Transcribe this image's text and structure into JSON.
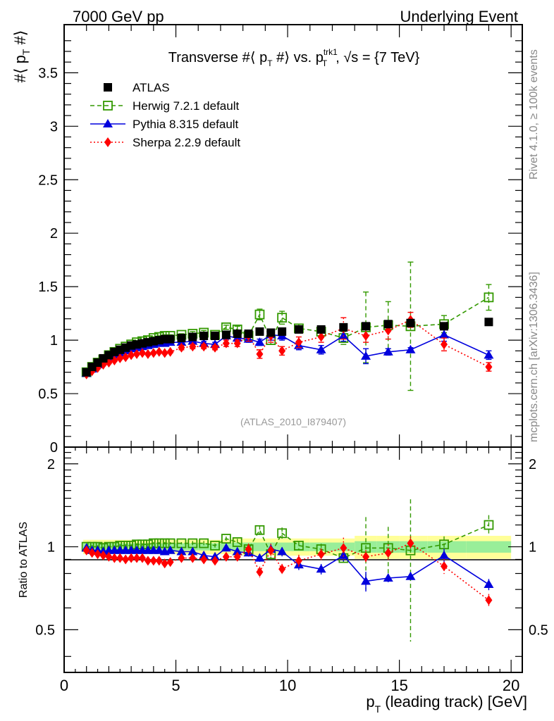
{
  "header": {
    "left": "7000 GeV pp",
    "right": "Underlying Event"
  },
  "side_labels": {
    "rivet": "Rivet 4.1.0, ≥ 100k events",
    "mcplots": "mcplots.cern.ch [arXiv:1306.3436]"
  },
  "chart_data": [
    {
      "type": "scatter",
      "panel": "main",
      "title": "Transverse #⟨ p_T #⟩ vs. p_T^trk1, √s = {7 TeV}",
      "title_parts": {
        "pre": "Transverse #⟨ p",
        "sub1": "T",
        "mid": " #⟩ vs. p",
        "sup2": "trk1",
        "sub2": "T",
        "post": ", √s = {7 TeV}"
      },
      "xlabel": "p_T (leading track) [GeV]",
      "ylabel": "#⟨ p_T #⟩",
      "xlim": [
        0,
        20.5
      ],
      "ylim": [
        0,
        3.95
      ],
      "yticks": [
        "0",
        "0.5",
        "1",
        "1.5",
        "2",
        "2.5",
        "3",
        "3.5"
      ],
      "analysis_id": "(ATLAS_2010_I879407)",
      "legend_position": "top-left",
      "x": [
        1.0,
        1.25,
        1.5,
        1.75,
        2.0,
        2.25,
        2.5,
        2.75,
        3.0,
        3.25,
        3.5,
        3.75,
        4.0,
        4.25,
        4.5,
        4.75,
        5.25,
        5.75,
        6.25,
        6.75,
        7.25,
        7.75,
        8.25,
        8.75,
        9.25,
        9.75,
        10.5,
        11.5,
        12.5,
        13.5,
        14.5,
        15.5,
        17.0,
        19.0
      ],
      "series": [
        {
          "name": "ATLAS",
          "color": "#000000",
          "marker": "square",
          "values": [
            0.7,
            0.75,
            0.79,
            0.83,
            0.86,
            0.89,
            0.91,
            0.93,
            0.95,
            0.96,
            0.97,
            0.98,
            0.99,
            1.0,
            1.01,
            1.01,
            1.02,
            1.03,
            1.04,
            1.04,
            1.05,
            1.06,
            1.06,
            1.08,
            1.07,
            1.08,
            1.1,
            1.1,
            1.12,
            1.13,
            1.15,
            1.16,
            1.13,
            1.17
          ]
        },
        {
          "name": "Herwig 7.2.1 default",
          "color": "#339900",
          "marker": "open-square",
          "line": "dashed",
          "values": [
            0.7,
            0.75,
            0.79,
            0.82,
            0.86,
            0.89,
            0.92,
            0.94,
            0.96,
            0.98,
            0.99,
            1.0,
            1.02,
            1.03,
            1.04,
            1.04,
            1.05,
            1.06,
            1.07,
            1.05,
            1.12,
            1.1,
            1.04,
            1.24,
            1.0,
            1.21,
            1.11,
            1.08,
            1.02,
            1.12,
            1.14,
            1.13,
            1.15,
            1.4
          ],
          "errors": [
            0.01,
            0.01,
            0.01,
            0.01,
            0.01,
            0.01,
            0.01,
            0.01,
            0.01,
            0.01,
            0.01,
            0.01,
            0.01,
            0.01,
            0.01,
            0.01,
            0.01,
            0.02,
            0.02,
            0.02,
            0.02,
            0.03,
            0.03,
            0.05,
            0.04,
            0.06,
            0.04,
            0.05,
            0.06,
            0.33,
            0.22,
            0.6,
            0.08,
            0.12
          ]
        },
        {
          "name": "Pythia 8.315 default",
          "color": "#0000dd",
          "marker": "triangle",
          "line": "solid",
          "values": [
            0.69,
            0.73,
            0.77,
            0.8,
            0.83,
            0.86,
            0.88,
            0.9,
            0.92,
            0.93,
            0.94,
            0.95,
            0.96,
            0.97,
            0.97,
            0.98,
            0.98,
            0.99,
            0.97,
            0.96,
            1.04,
            1.02,
            1.01,
            0.98,
            1.05,
            1.04,
            0.95,
            0.91,
            1.04,
            0.85,
            0.89,
            0.91,
            1.05,
            0.86
          ],
          "errors": [
            0.01,
            0.01,
            0.01,
            0.01,
            0.01,
            0.01,
            0.01,
            0.01,
            0.01,
            0.01,
            0.01,
            0.01,
            0.01,
            0.01,
            0.01,
            0.01,
            0.01,
            0.02,
            0.02,
            0.02,
            0.03,
            0.03,
            0.03,
            0.03,
            0.05,
            0.04,
            0.04,
            0.04,
            0.05,
            0.07,
            0.03,
            0.02,
            0.06,
            0.04
          ]
        },
        {
          "name": "Sherpa 2.2.9 default",
          "color": "#ff0000",
          "marker": "diamond",
          "line": "dotted",
          "values": [
            0.68,
            0.71,
            0.74,
            0.77,
            0.79,
            0.81,
            0.83,
            0.84,
            0.86,
            0.87,
            0.88,
            0.87,
            0.88,
            0.89,
            0.88,
            0.89,
            0.93,
            0.94,
            0.94,
            0.93,
            0.97,
            0.97,
            1.04,
            0.87,
            1.04,
            0.9,
            0.98,
            1.03,
            1.11,
            1.04,
            1.09,
            1.19,
            0.96,
            0.75
          ],
          "errors": [
            0.01,
            0.01,
            0.01,
            0.01,
            0.01,
            0.01,
            0.01,
            0.01,
            0.01,
            0.01,
            0.01,
            0.01,
            0.01,
            0.01,
            0.01,
            0.01,
            0.02,
            0.02,
            0.02,
            0.02,
            0.03,
            0.03,
            0.05,
            0.04,
            0.06,
            0.04,
            0.05,
            0.05,
            0.1,
            0.06,
            0.08,
            0.07,
            0.06,
            0.04
          ]
        }
      ]
    },
    {
      "type": "scatter",
      "panel": "ratio",
      "ylabel": "Ratio to ATLAS",
      "xlabel": "p_T (leading track) [GeV]",
      "xlim": [
        0,
        20.5
      ],
      "ylim": [
        0.35,
        2.3
      ],
      "yscale": "log",
      "yticks": [
        "0.5",
        "1",
        "2"
      ],
      "xticks": [
        "0",
        "5",
        "10",
        "15",
        "20"
      ],
      "band_colors": {
        "outer": "#ffff99",
        "inner": "#99ee99"
      },
      "band_rel_outer": 0.06,
      "band_rel_inner": 0.03,
      "series": [
        {
          "name": "Herwig 7.2.1 default",
          "color": "#339900",
          "values": [
            1.0,
            1.0,
            1.0,
            0.99,
            1.0,
            1.0,
            1.01,
            1.01,
            1.01,
            1.02,
            1.02,
            1.02,
            1.03,
            1.03,
            1.03,
            1.03,
            1.03,
            1.03,
            1.03,
            1.01,
            1.07,
            1.04,
            0.98,
            1.15,
            0.94,
            1.12,
            1.01,
            0.98,
            0.91,
            0.99,
            0.99,
            0.97,
            1.02,
            1.2
          ]
        },
        {
          "name": "Pythia 8.315 default",
          "color": "#0000dd",
          "values": [
            0.99,
            0.97,
            0.97,
            0.96,
            0.97,
            0.97,
            0.97,
            0.97,
            0.97,
            0.97,
            0.97,
            0.97,
            0.97,
            0.97,
            0.96,
            0.97,
            0.96,
            0.96,
            0.93,
            0.92,
            0.99,
            0.96,
            0.95,
            0.91,
            0.98,
            0.96,
            0.86,
            0.83,
            0.93,
            0.75,
            0.77,
            0.78,
            0.93,
            0.73
          ]
        },
        {
          "name": "Sherpa 2.2.9 default",
          "color": "#ff0000",
          "values": [
            0.97,
            0.95,
            0.94,
            0.93,
            0.92,
            0.91,
            0.91,
            0.9,
            0.91,
            0.91,
            0.91,
            0.89,
            0.89,
            0.89,
            0.87,
            0.88,
            0.91,
            0.91,
            0.9,
            0.89,
            0.92,
            0.92,
            0.98,
            0.81,
            0.97,
            0.83,
            0.89,
            0.94,
            0.99,
            0.92,
            0.95,
            1.03,
            0.85,
            0.64
          ]
        }
      ]
    }
  ]
}
